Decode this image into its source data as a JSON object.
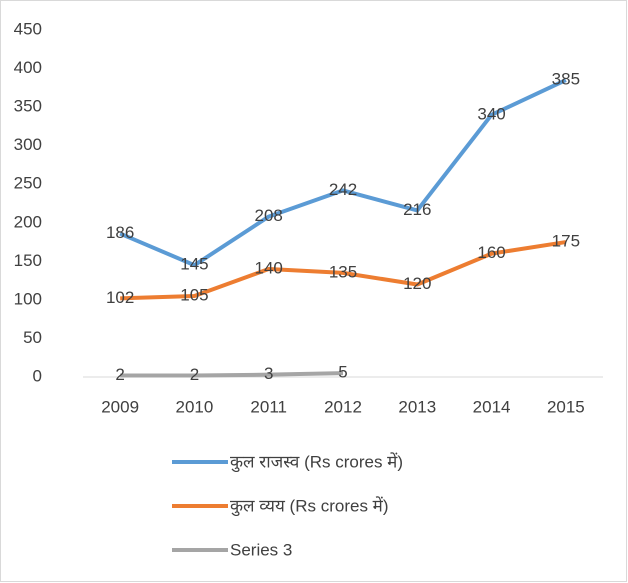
{
  "chart_data": {
    "type": "line",
    "categories": [
      "2009",
      "2010",
      "2011",
      "2012",
      "2013",
      "2014",
      "2015"
    ],
    "series": [
      {
        "name": "कुल राजस्व (Rs crores में)",
        "color": "#5b9bd5",
        "values": [
          186,
          145,
          208,
          242,
          216,
          340,
          385
        ]
      },
      {
        "name": "कुल व्यय (Rs crores में)",
        "color": "#ed7d31",
        "values": [
          102,
          105,
          140,
          135,
          120,
          160,
          175
        ]
      },
      {
        "name": "Series 3",
        "color": "#a5a5a5",
        "values": [
          2,
          2,
          3,
          5,
          null,
          null,
          null
        ]
      }
    ],
    "ylim": [
      0,
      450
    ],
    "yticks": [
      0,
      50,
      100,
      150,
      200,
      250,
      300,
      350,
      400,
      450
    ],
    "grid": false,
    "legend": "bottom",
    "data_labels": true
  }
}
